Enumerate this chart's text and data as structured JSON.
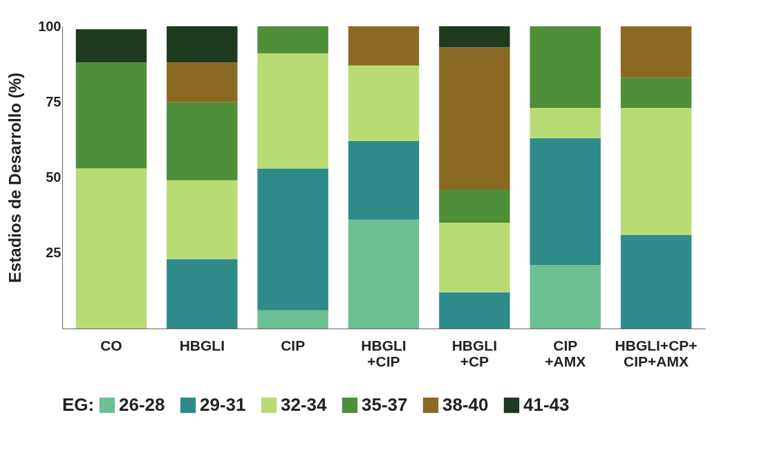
{
  "chart_data": {
    "type": "bar",
    "stacked": true,
    "ylabel": "Estadios de Desarrollo (%)",
    "legend_title": "EG:",
    "legend": "bottom",
    "categories": [
      "CO",
      "HBGLI",
      "CIP",
      "HBGLI\n+CIP",
      "HBGLI\n+CP",
      "CIP\n+AMX",
      "HBGLI+CP+\nCIP+AMX"
    ],
    "series": [
      {
        "name": "26-28",
        "color": "#6dbf94",
        "values": [
          null,
          null,
          6,
          36,
          null,
          21,
          null
        ]
      },
      {
        "name": "29-31",
        "color": "#2f8a8a",
        "values": [
          null,
          23,
          47,
          26,
          12,
          42,
          31
        ]
      },
      {
        "name": "32-34",
        "color": "#b8db74",
        "values": [
          53,
          26,
          38,
          25,
          23,
          10,
          42
        ]
      },
      {
        "name": "35-37",
        "color": "#4f8f3a",
        "values": [
          35,
          26,
          9,
          null,
          11,
          27,
          10
        ]
      },
      {
        "name": "38-40",
        "color": "#8a6a22",
        "values": [
          null,
          13,
          null,
          13,
          47,
          null,
          17
        ]
      },
      {
        "name": "41-43",
        "color": "#1f3a1f",
        "values": [
          11,
          12,
          null,
          null,
          7,
          null,
          null
        ]
      }
    ],
    "ylim": [
      0,
      100
    ],
    "yticks": [
      25,
      50,
      75,
      100
    ]
  }
}
